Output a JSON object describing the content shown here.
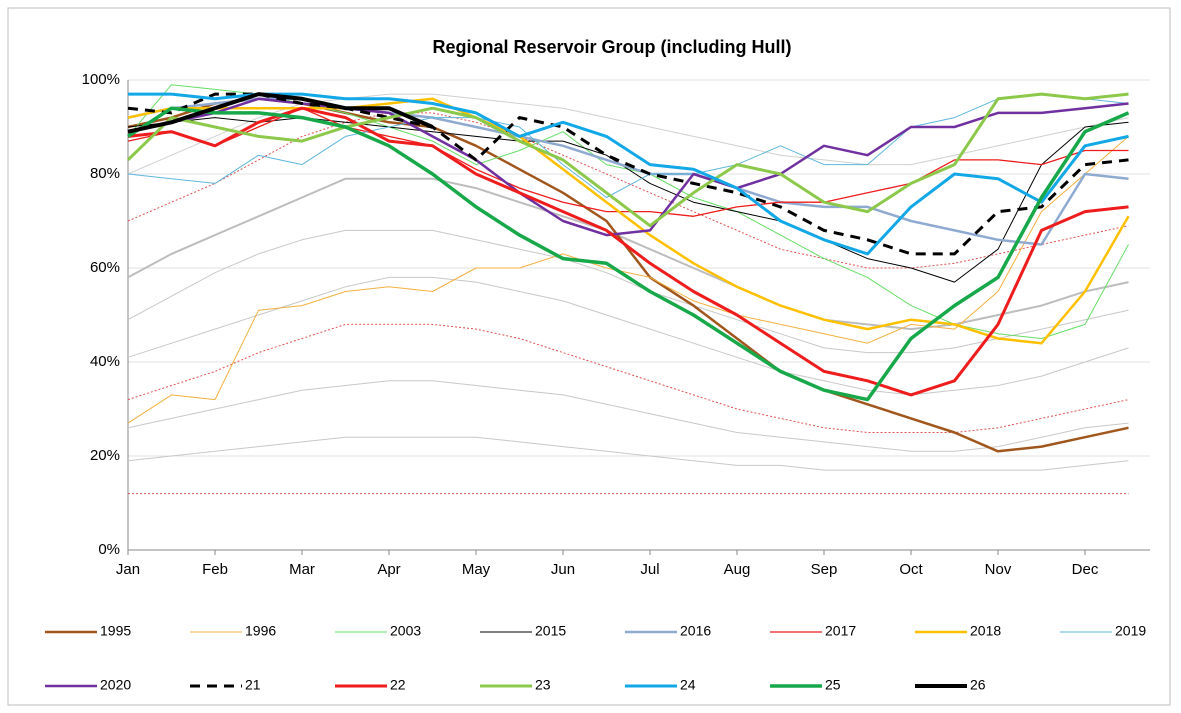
{
  "chart_data": {
    "type": "line",
    "title": "Regional Reservoir Group (including Hull)",
    "categories": [
      "Jan",
      null,
      "Feb",
      null,
      "Mar",
      null,
      "Apr",
      null,
      "May",
      null,
      "Jun",
      null,
      "Jul",
      null,
      "Aug",
      null,
      "Sep",
      null,
      "Oct",
      null,
      "Nov",
      null,
      "Dec",
      null
    ],
    "ylim": [
      0,
      100
    ],
    "yticks": [
      {
        "value": 0,
        "label": "0%"
      },
      {
        "value": 20,
        "label": "20%"
      },
      {
        "value": 40,
        "label": "40%"
      },
      {
        "value": 60,
        "label": "60%"
      },
      {
        "value": 80,
        "label": "80%"
      },
      {
        "value": 100,
        "label": "100%"
      }
    ],
    "grid": true,
    "reference_lines": [
      {
        "color": "#d0d0d0",
        "width": 1,
        "dash": false,
        "values": [
          80,
          84,
          88,
          92,
          95,
          96,
          97,
          97,
          96,
          95,
          94,
          92,
          90,
          88,
          86,
          84,
          83,
          82,
          82,
          84,
          86,
          88,
          90,
          92
        ]
      },
      {
        "color": "#bdbdbd",
        "width": 2,
        "dash": false,
        "values": [
          58,
          63,
          67,
          71,
          75,
          79,
          79,
          79,
          77,
          74,
          71,
          68,
          64,
          60,
          56,
          52,
          49,
          48,
          47,
          48,
          50,
          52,
          55,
          57
        ]
      },
      {
        "color": "#c8c8c8",
        "width": 1,
        "dash": false,
        "values": [
          49,
          54,
          59,
          63,
          66,
          68,
          68,
          68,
          66,
          64,
          62,
          59,
          55,
          52,
          49,
          46,
          43,
          42,
          42,
          43,
          45,
          47,
          49,
          51
        ]
      },
      {
        "color": "#c8c8c8",
        "width": 1,
        "dash": false,
        "values": [
          41,
          44,
          47,
          50,
          53,
          56,
          58,
          58,
          57,
          55,
          53,
          50,
          47,
          44,
          41,
          38,
          36,
          34,
          33,
          34,
          35,
          37,
          40,
          43
        ]
      },
      {
        "color": "#c8c8c8",
        "width": 1,
        "dash": false,
        "values": [
          26,
          28,
          30,
          32,
          34,
          35,
          36,
          36,
          35,
          34,
          33,
          31,
          29,
          27,
          25,
          24,
          23,
          22,
          21,
          21,
          22,
          24,
          26,
          27
        ]
      },
      {
        "color": "#c8c8c8",
        "width": 1,
        "dash": false,
        "values": [
          19,
          20,
          21,
          22,
          23,
          24,
          24,
          24,
          24,
          23,
          22,
          21,
          20,
          19,
          18,
          18,
          17,
          17,
          17,
          17,
          17,
          17,
          18,
          19
        ]
      },
      {
        "color": "#e05050",
        "width": 1,
        "dash": true,
        "values": [
          70,
          74,
          78,
          83,
          88,
          91,
          93,
          93,
          91,
          88,
          84,
          80,
          76,
          72,
          68,
          64,
          62,
          60,
          60,
          61,
          63,
          65,
          67,
          69
        ]
      },
      {
        "color": "#e05050",
        "width": 1,
        "dash": true,
        "values": [
          32,
          35,
          38,
          42,
          45,
          48,
          48,
          48,
          47,
          45,
          42,
          39,
          36,
          33,
          30,
          28,
          26,
          25,
          25,
          25,
          26,
          28,
          30,
          32
        ]
      },
      {
        "color": "#e05050",
        "width": 1,
        "dash": true,
        "values": [
          12,
          12,
          12,
          12,
          12,
          12,
          12,
          12,
          12,
          12,
          12,
          12,
          12,
          12,
          12,
          12,
          12,
          12,
          12,
          12,
          12,
          12,
          12,
          12
        ]
      }
    ],
    "series": [
      {
        "name": "1995",
        "color": "#a0561c",
        "width": 2.5,
        "dash": false,
        "values": [
          90,
          92,
          95,
          96,
          95,
          93,
          91,
          90,
          86,
          81,
          76,
          70,
          58,
          52,
          45,
          38,
          34,
          31,
          28,
          25,
          21,
          22,
          24,
          26
        ]
      },
      {
        "name": "1996",
        "color": "#f4b040",
        "width": 1,
        "dash": false,
        "values": [
          27,
          33,
          32,
          51,
          52,
          55,
          56,
          55,
          60,
          60,
          63,
          60,
          58,
          53,
          50,
          48,
          46,
          44,
          48,
          47,
          55,
          72,
          80,
          88
        ]
      },
      {
        "name": "2003",
        "color": "#66dd66",
        "width": 1,
        "dash": false,
        "values": [
          88,
          99,
          98,
          97,
          95,
          93,
          90,
          87,
          82,
          85,
          89,
          82,
          80,
          75,
          72,
          67,
          62,
          58,
          52,
          48,
          46,
          45,
          48,
          65
        ]
      },
      {
        "name": "2015",
        "color": "#000000",
        "width": 1,
        "dash": false,
        "values": [
          90,
          91,
          92,
          91,
          92,
          91,
          90,
          89,
          88,
          87,
          87,
          84,
          78,
          74,
          72,
          70,
          66,
          62,
          60,
          57,
          64,
          82,
          90,
          91
        ]
      },
      {
        "name": "2016",
        "color": "#8faad0",
        "width": 2.5,
        "dash": false,
        "values": [
          92,
          94,
          95,
          96,
          96,
          94,
          93,
          92,
          90,
          88,
          86,
          83,
          80,
          80,
          77,
          74,
          73,
          73,
          70,
          68,
          66,
          65,
          80,
          79
        ]
      },
      {
        "name": "2017",
        "color": "#ee1c1c",
        "width": 1.3,
        "dash": false,
        "values": [
          87,
          89,
          86,
          90,
          94,
          90,
          88,
          86,
          81,
          77,
          74,
          72,
          72,
          71,
          73,
          74,
          74,
          76,
          78,
          83,
          83,
          82,
          85,
          85
        ]
      },
      {
        "name": "2018",
        "color": "#ffc000",
        "width": 2.5,
        "dash": false,
        "values": [
          92,
          94,
          94,
          94,
          94,
          94,
          95,
          96,
          92,
          88,
          81,
          74,
          67,
          61,
          56,
          52,
          49,
          47,
          49,
          48,
          45,
          44,
          55,
          71
        ]
      },
      {
        "name": "2019",
        "color": "#5fb7dc",
        "width": 1,
        "dash": false,
        "values": [
          80,
          79,
          78,
          84,
          82,
          88,
          90,
          92,
          92,
          90,
          82,
          75,
          80,
          80,
          82,
          86,
          82,
          82,
          90,
          92,
          96,
          97,
          96,
          95
        ]
      },
      {
        "name": "2020",
        "color": "#7030a0",
        "width": 2.5,
        "dash": false,
        "values": [
          89,
          91,
          93,
          96,
          95,
          94,
          93,
          88,
          83,
          76,
          70,
          67,
          68,
          80,
          77,
          80,
          86,
          84,
          90,
          90,
          93,
          93,
          94,
          95
        ]
      },
      {
        "name": "21",
        "color": "#000000",
        "width": 3,
        "dash": true,
        "values": [
          94,
          93,
          97,
          97,
          95,
          94,
          92,
          90,
          83,
          92,
          90,
          84,
          80,
          78,
          76,
          73,
          68,
          66,
          63,
          63,
          72,
          73,
          82,
          83
        ]
      },
      {
        "name": "22",
        "color": "#ee1c1c",
        "width": 3,
        "dash": false,
        "values": [
          88,
          89,
          86,
          91,
          94,
          92,
          87,
          86,
          80,
          76,
          72,
          68,
          61,
          55,
          50,
          44,
          38,
          36,
          33,
          36,
          48,
          68,
          72,
          73
        ]
      },
      {
        "name": "23",
        "color": "#8cc84a",
        "width": 3,
        "dash": false,
        "values": [
          83,
          92,
          90,
          88,
          87,
          90,
          92,
          94,
          92,
          87,
          83,
          76,
          69,
          76,
          82,
          80,
          74,
          72,
          78,
          82,
          96,
          97,
          96,
          97
        ]
      },
      {
        "name": "24",
        "color": "#12a8e8",
        "width": 3,
        "dash": false,
        "values": [
          97,
          97,
          96,
          97,
          97,
          96,
          96,
          95,
          93,
          88,
          91,
          88,
          82,
          81,
          77,
          70,
          66,
          63,
          73,
          80,
          79,
          74,
          86,
          88
        ]
      },
      {
        "name": "25",
        "color": "#17a84a",
        "width": 3.5,
        "dash": false,
        "values": [
          88,
          94,
          93,
          93,
          92,
          90,
          86,
          80,
          73,
          67,
          62,
          61,
          55,
          50,
          44,
          38,
          34,
          32,
          45,
          52,
          58,
          75,
          89,
          93
        ]
      },
      {
        "name": "26",
        "color": "#000000",
        "width": 4,
        "dash": false,
        "values": [
          89,
          91,
          94,
          97,
          96,
          94,
          94,
          90,
          null,
          null,
          null,
          null,
          null,
          null,
          null,
          null,
          null,
          null,
          null,
          null,
          null,
          null,
          null,
          null
        ]
      }
    ]
  }
}
